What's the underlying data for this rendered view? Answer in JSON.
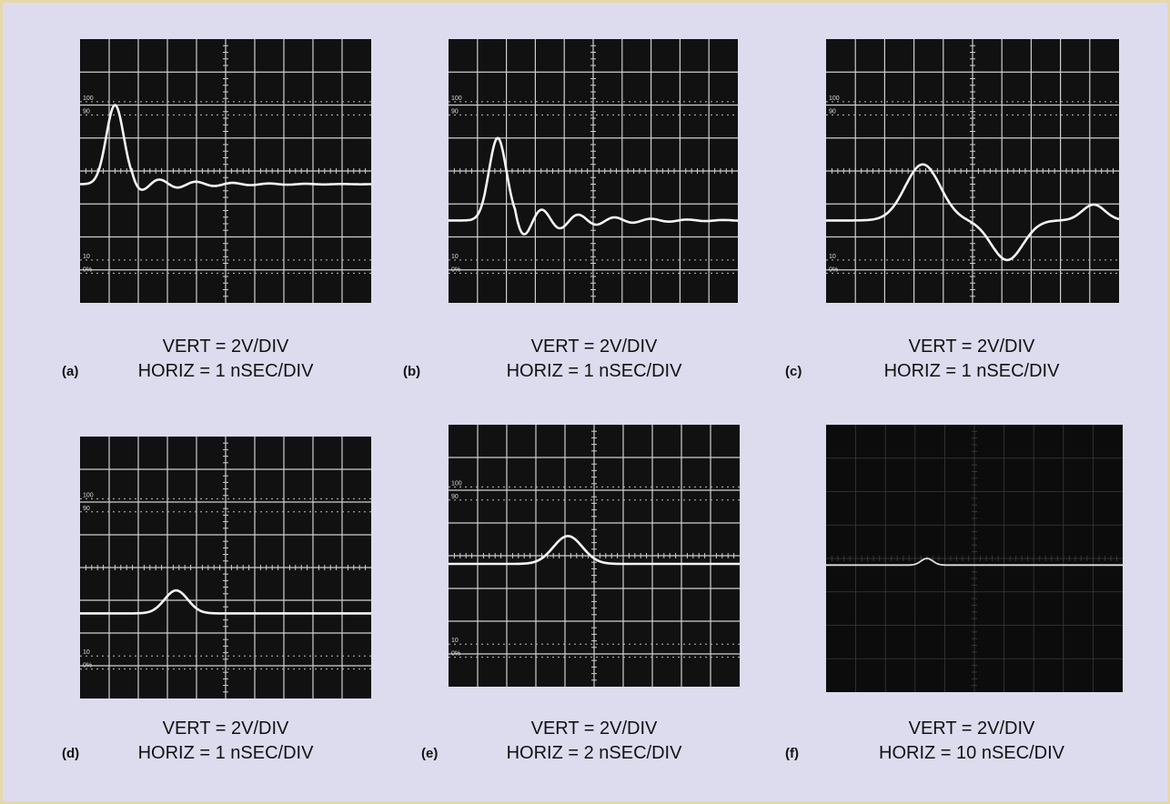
{
  "panels": [
    {
      "label": "(a)",
      "vert": "VERT = 2V/DIV",
      "horiz": "HORIZ = 1 nSEC/DIV",
      "scale_labels": [
        "100",
        "90",
        "10",
        "0%"
      ]
    },
    {
      "label": "(b)",
      "vert": "VERT = 2V/DIV",
      "horiz": "HORIZ = 1 nSEC/DIV",
      "scale_labels": [
        "100",
        "90",
        "10",
        "0%"
      ]
    },
    {
      "label": "(c)",
      "vert": "VERT = 2V/DIV",
      "horiz": "HORIZ = 1 nSEC/DIV",
      "scale_labels": [
        "100",
        "90",
        "10",
        "0%"
      ]
    },
    {
      "label": "(d)",
      "vert": "VERT = 2V/DIV",
      "horiz": "HORIZ = 1 nSEC/DIV",
      "scale_labels": [
        "100",
        "90",
        "10",
        "0%"
      ]
    },
    {
      "label": "(e)",
      "vert": "VERT = 2V/DIV",
      "horiz": "HORIZ = 2 nSEC/DIV",
      "scale_labels": [
        "100",
        "90",
        "10",
        "0%"
      ]
    },
    {
      "label": "(f)",
      "vert": "VERT = 2V/DIV",
      "horiz": "HORIZ = 10 nSEC/DIV",
      "scale_labels": []
    }
  ]
}
